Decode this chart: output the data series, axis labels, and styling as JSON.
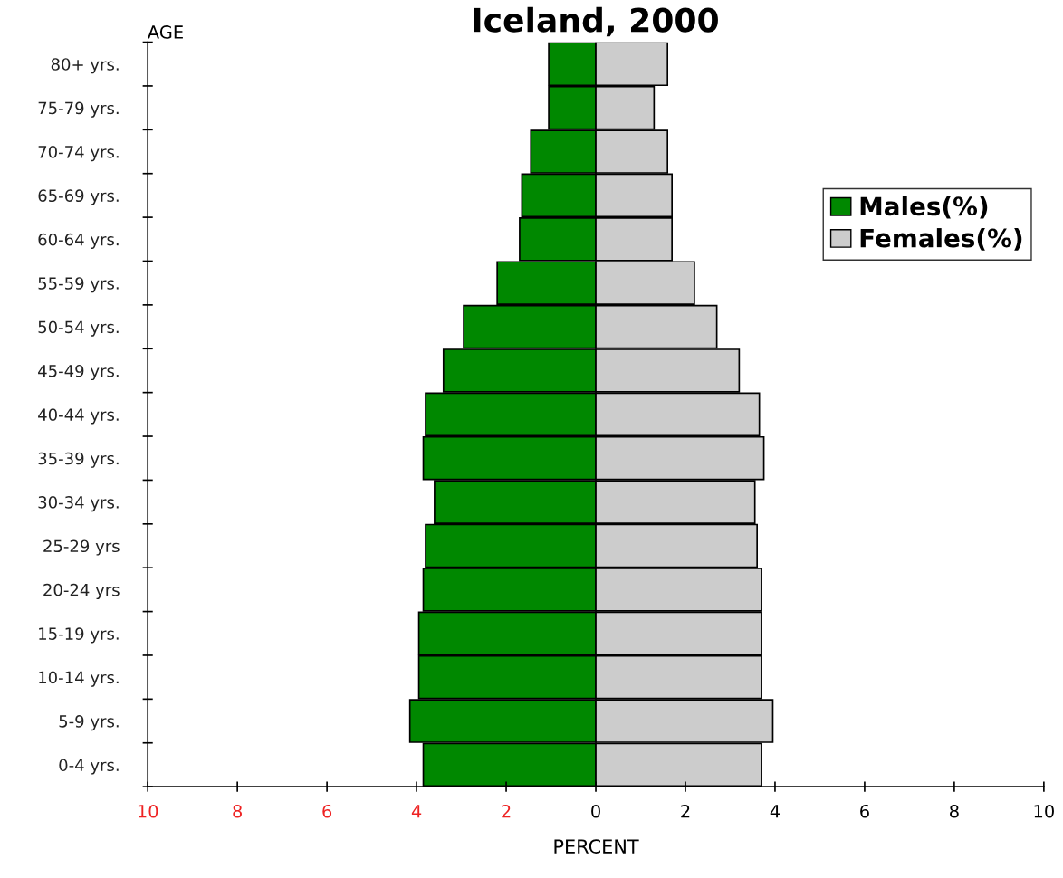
{
  "chart_data": {
    "type": "bar",
    "orientation": "horizontal",
    "title": "Iceland, 2000",
    "xlabel": "PERCENT",
    "ylabel": "AGE",
    "categories": [
      "80+ yrs.",
      "75-79 yrs.",
      "70-74 yrs.",
      "65-69 yrs.",
      "60-64 yrs.",
      "55-59 yrs.",
      "50-54 yrs.",
      "45-49 yrs.",
      "40-44 yrs.",
      "35-39 yrs.",
      "30-34 yrs.",
      "25-29 yrs",
      "20-24 yrs",
      "15-19 yrs.",
      "10-14 yrs.",
      "5-9 yrs.",
      "0-4 yrs."
    ],
    "series": [
      {
        "name": "Males(%)",
        "color": "#008800",
        "values": [
          -1.05,
          -1.05,
          -1.45,
          -1.65,
          -1.7,
          -2.2,
          -2.95,
          -3.4,
          -3.8,
          -3.85,
          -3.6,
          -3.8,
          -3.85,
          -3.95,
          -3.95,
          -4.15,
          -3.85
        ]
      },
      {
        "name": "Females(%)",
        "color": "#cccccc",
        "values": [
          1.6,
          1.3,
          1.6,
          1.7,
          1.7,
          2.2,
          2.7,
          3.2,
          3.65,
          3.75,
          3.55,
          3.6,
          3.7,
          3.7,
          3.7,
          3.95,
          3.7
        ]
      }
    ],
    "xlim": [
      -10,
      10
    ],
    "xticks": [
      {
        "value": -10,
        "label": "10"
      },
      {
        "value": -8,
        "label": "8"
      },
      {
        "value": -6,
        "label": "6"
      },
      {
        "value": -4,
        "label": "4"
      },
      {
        "value": -2,
        "label": "2"
      },
      0,
      2,
      4,
      6,
      8,
      10
    ],
    "stacked": true,
    "grid": false,
    "legend": "top right"
  }
}
